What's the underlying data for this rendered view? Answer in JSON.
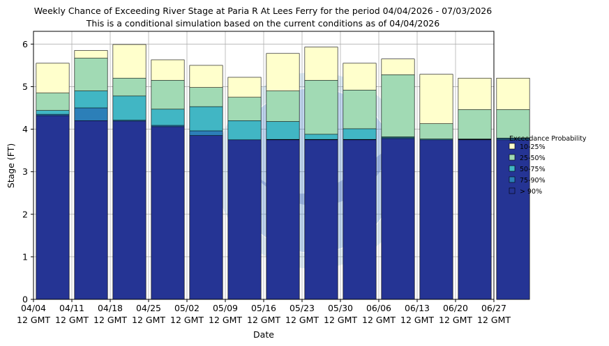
{
  "chart_data": {
    "type": "bar",
    "title": "Weekly Chance of Exceeding River Stage at Paria R At Lees Ferry for the period 04/04/2026 - 07/03/2026",
    "subtitle": "This is a conditional simulation based on the current conditions as of 04/04/2026",
    "xlabel": "Date",
    "ylabel": "Stage (FT)",
    "ylim": [
      0,
      6.3
    ],
    "yticks": [
      "0",
      "1",
      "2",
      "3",
      "4",
      "5",
      "6"
    ],
    "grid": true,
    "x_tick_dates": [
      "04/04",
      "04/11",
      "04/18",
      "04/25",
      "05/02",
      "05/09",
      "05/16",
      "05/23",
      "05/30",
      "06/06",
      "06/13",
      "06/20",
      "06/27"
    ],
    "x_tick_time": "12 GMT",
    "legend": {
      "title": "Exceedance Probability",
      "placement": "right",
      "entries": [
        "10-25%",
        "25-50%",
        "50-75%",
        "75-90%",
        "> 90%"
      ]
    },
    "colors": {
      "10-25%": "#ffffcc",
      "25-50%": "#a1dab4",
      "50-75%": "#41b6c4",
      "75-90%": "#2c7fb8",
      "> 90%": "#253494"
    },
    "series": [
      {
        "name": "> 90%",
        "values": [
          4.32,
          4.2,
          4.19,
          4.06,
          3.85,
          3.75,
          3.75,
          3.75,
          3.75,
          3.78,
          3.75,
          3.75,
          3.75
        ]
      },
      {
        "name": "75-90%",
        "values": [
          4.35,
          4.5,
          4.21,
          4.09,
          3.96,
          3.75,
          3.76,
          3.76,
          3.76,
          3.8,
          3.75,
          3.76,
          3.78
        ]
      },
      {
        "name": "50-75%",
        "values": [
          4.44,
          4.9,
          4.78,
          4.47,
          4.53,
          4.2,
          4.18,
          3.88,
          4.01,
          3.82,
          3.77,
          3.77,
          3.79
        ]
      },
      {
        "name": "25-50%",
        "values": [
          4.85,
          5.67,
          5.2,
          5.15,
          4.98,
          4.75,
          4.9,
          5.15,
          4.92,
          5.28,
          4.13,
          4.46,
          4.46
        ]
      },
      {
        "name": "10-25%",
        "values": [
          5.55,
          5.85,
          5.99,
          5.63,
          5.5,
          5.22,
          5.78,
          5.93,
          5.55,
          5.65,
          5.29,
          5.2,
          5.2
        ]
      }
    ]
  }
}
